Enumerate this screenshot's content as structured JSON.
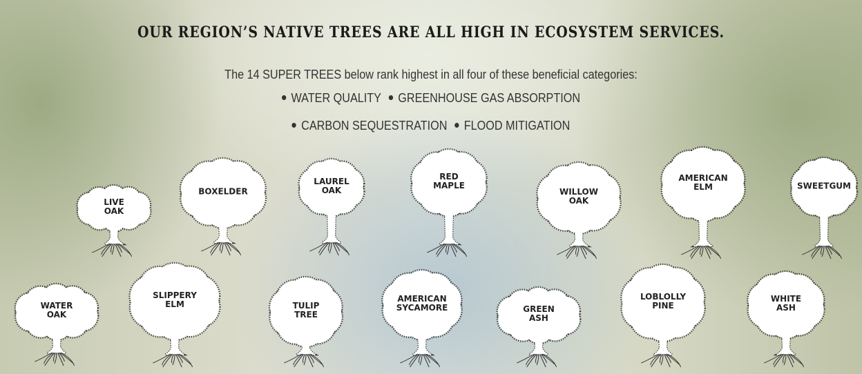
{
  "title": "OUR REGION’S NATIVE TREES ARE ALL HIGH IN ECOSYSTEM SERVICES.",
  "intro": "The 14 SUPER TREES below rank highest in all four of these beneficial categories:",
  "benefit_rows": [
    [
      "WATER QUALITY",
      "GREENHOUSE GAS ABSORPTION"
    ],
    [
      "CARBON SEQUESTRATION",
      "FLOOD MITIGATION"
    ]
  ],
  "trees": [
    {
      "label_lines": [
        "LIVE",
        "OAK"
      ]
    },
    {
      "label_lines": [
        "BOXELDER"
      ]
    },
    {
      "label_lines": [
        "LAUREL",
        "OAK"
      ]
    },
    {
      "label_lines": [
        "RED",
        "MAPLE"
      ]
    },
    {
      "label_lines": [
        "WILLOW",
        "OAK"
      ]
    },
    {
      "label_lines": [
        "AMERICAN",
        "ELM"
      ]
    },
    {
      "label_lines": [
        "SWEETGUM"
      ]
    },
    {
      "label_lines": [
        "WATER",
        "OAK"
      ]
    },
    {
      "label_lines": [
        "SLIPPERY",
        "ELM"
      ]
    },
    {
      "label_lines": [
        "TULIP",
        "TREE"
      ]
    },
    {
      "label_lines": [
        "AMERICAN",
        "SYCAMORE"
      ]
    },
    {
      "label_lines": [
        "GREEN",
        "ASH"
      ]
    },
    {
      "label_lines": [
        "LOBLOLLY",
        "PINE"
      ]
    },
    {
      "label_lines": [
        "WHITE",
        "ASH"
      ]
    }
  ]
}
